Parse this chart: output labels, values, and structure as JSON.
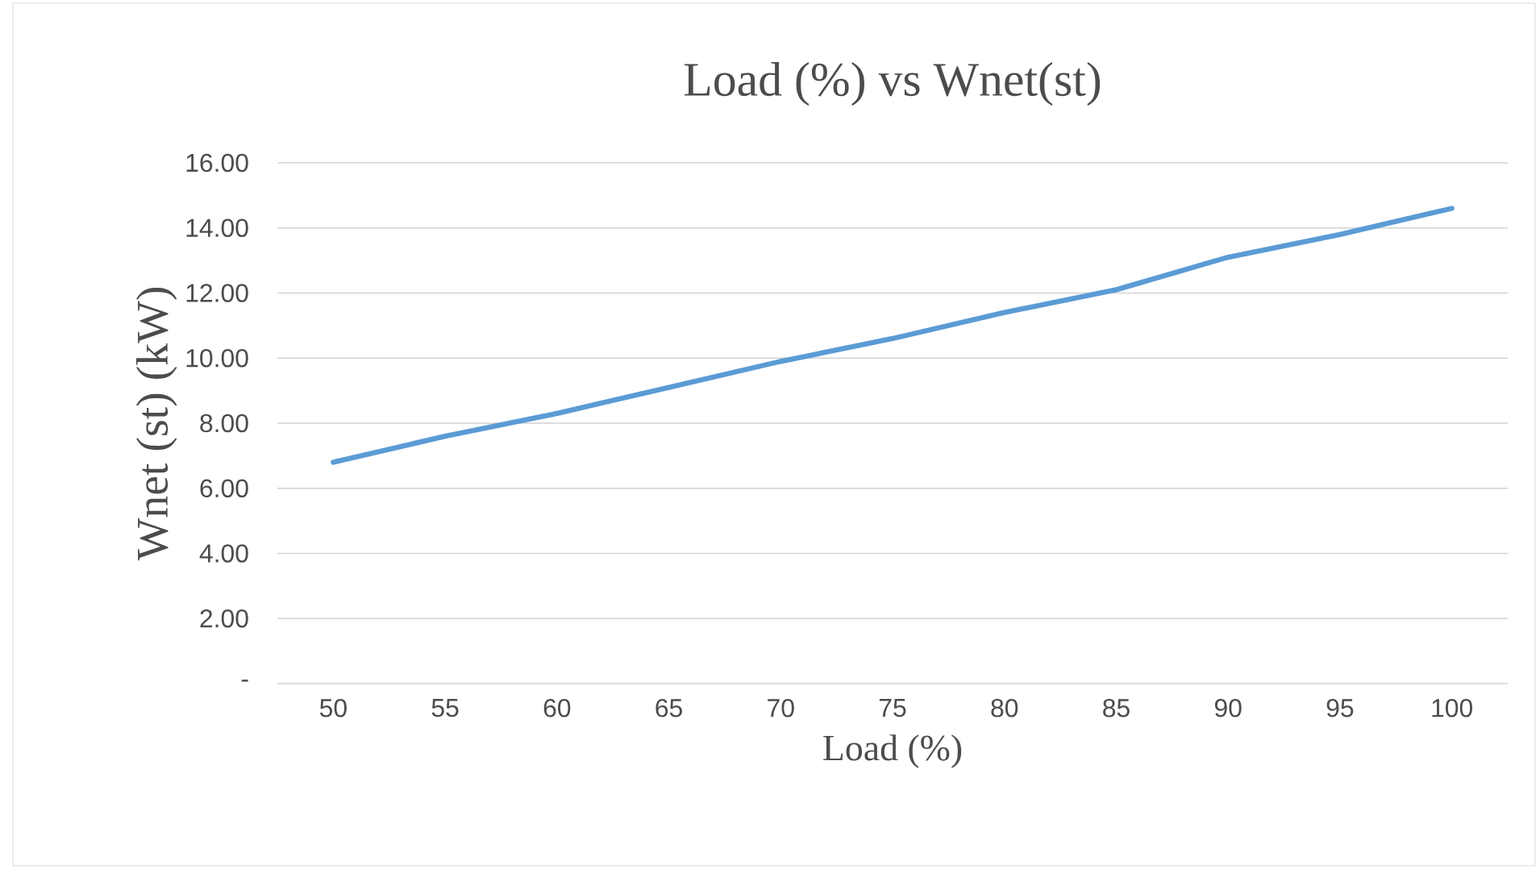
{
  "chart_data": {
    "type": "line",
    "title": "Load (%) vs Wnet(st)",
    "xlabel": "Load (%)",
    "ylabel": "Wnet (st) (kW)",
    "categories": [
      "50",
      "55",
      "60",
      "65",
      "70",
      "75",
      "80",
      "85",
      "90",
      "95",
      "100"
    ],
    "series": [
      {
        "color": "#5b9bd5",
        "values": [
          6.8,
          7.6,
          8.3,
          9.1,
          9.9,
          10.6,
          11.4,
          12.1,
          13.1,
          13.8,
          14.6
        ]
      }
    ],
    "ylim": [
      0,
      16
    ],
    "yticks": [
      {
        "value": 0,
        "label": "-"
      },
      {
        "value": 2,
        "label": "2.00"
      },
      {
        "value": 4,
        "label": "4.00"
      },
      {
        "value": 6,
        "label": "6.00"
      },
      {
        "value": 8,
        "label": "8.00"
      },
      {
        "value": 10,
        "label": "10.00"
      },
      {
        "value": 12,
        "label": "12.00"
      },
      {
        "value": 14,
        "label": "14.00"
      },
      {
        "value": 16,
        "label": "16.00"
      }
    ],
    "grid": "y",
    "marker": "none",
    "line_style": "solid"
  }
}
